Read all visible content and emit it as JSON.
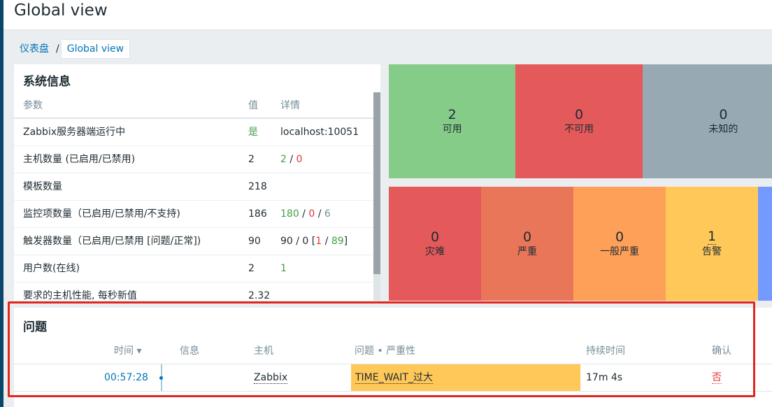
{
  "header": {
    "title": "Global view"
  },
  "breadcrumb": {
    "parent": "仪表盘",
    "separator": "/",
    "current": "Global view"
  },
  "system_info": {
    "title": "系统信息",
    "columns": {
      "param": "参数",
      "value": "值",
      "details": "详情"
    },
    "rows": [
      {
        "param": "Zabbix服务器端运行中",
        "value": "是",
        "details": "localhost:10051"
      },
      {
        "param": "主机数量 (已启用/已禁用)",
        "value": "2",
        "d1": "2",
        "sep1": " / ",
        "d2": "0"
      },
      {
        "param": "模板数量",
        "value": "218"
      },
      {
        "param": "监控项数量（已启用/已禁用/不支持)",
        "value": "186",
        "d1": "180",
        "sep1": " / ",
        "d2": "0",
        "sep2": " / ",
        "d3": "6"
      },
      {
        "param": "触发器数量（已启用/已禁用 [问题/正常])",
        "value": "90",
        "d_pre": "90 / 0 [",
        "d1": "1",
        "sep1": " / ",
        "d2": "89",
        "d_post": "]"
      },
      {
        "param": "用户数(在线)",
        "value": "2",
        "details": "1"
      },
      {
        "param": "要求的主机性能, 每秒新值",
        "value": "2.32"
      }
    ]
  },
  "host_availability": [
    {
      "count": "2",
      "label": "可用",
      "color": "#86cc89"
    },
    {
      "count": "0",
      "label": "不可用",
      "color": "#e45959"
    },
    {
      "count": "0",
      "label": "未知的",
      "color": "#97aab3"
    }
  ],
  "severity": [
    {
      "count": "0",
      "label": "灾难",
      "color": "#e45959"
    },
    {
      "count": "0",
      "label": "严重",
      "color": "#e97659"
    },
    {
      "count": "0",
      "label": "一般严重",
      "color": "#ffa059"
    },
    {
      "count": "1",
      "label": "告警",
      "color": "#ffc859"
    }
  ],
  "problems": {
    "title": "问题",
    "columns": {
      "time": "时间 ▾",
      "info": "信息",
      "host": "主机",
      "problem": "问题 • 严重性",
      "duration": "持续时间",
      "ack": "确认"
    },
    "rows": [
      {
        "time": "00:57:28",
        "info": "",
        "host": "Zabbix",
        "problem": "TIME_WAIT_过大",
        "duration": "17m 4s",
        "ack": "否"
      }
    ]
  }
}
